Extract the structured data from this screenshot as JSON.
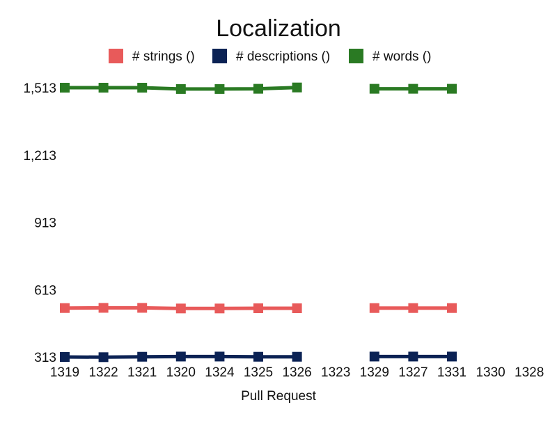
{
  "chart_data": {
    "type": "line",
    "title": "Localization",
    "xlabel": "Pull Request",
    "ylabel": "",
    "categories": [
      "1319",
      "1322",
      "1321",
      "1320",
      "1324",
      "1325",
      "1326",
      "1323",
      "1329",
      "1327",
      "1331",
      "1330",
      "1328"
    ],
    "y_ticks": [
      "313",
      "613",
      "913",
      "1,213",
      "1,513"
    ],
    "ylim": [
      313,
      1513
    ],
    "grid": false,
    "legend_position": "top",
    "series": [
      {
        "name": "# strings ()",
        "color": "#e85a5a",
        "values": [
          531,
          532,
          532,
          529,
          529,
          530,
          530,
          null,
          531,
          531,
          531,
          null,
          null
        ]
      },
      {
        "name": "# descriptions ()",
        "color": "#0b2254",
        "values": [
          313,
          312,
          314,
          315,
          315,
          314,
          314,
          null,
          315,
          315,
          315,
          null,
          null
        ]
      },
      {
        "name": "# words ()",
        "color": "#2a7a23",
        "values": [
          1513,
          1513,
          1513,
          1507,
          1507,
          1508,
          1514,
          null,
          1508,
          1508,
          1508,
          null,
          null
        ]
      }
    ]
  }
}
